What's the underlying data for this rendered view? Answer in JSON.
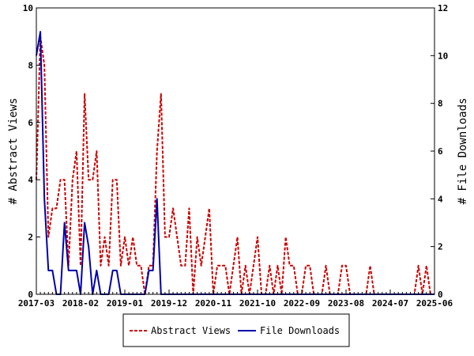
{
  "chart_data": {
    "type": "line",
    "ylabel_left": "# Abstract Views",
    "ylabel_right": "# File Downloads",
    "ylim_left": [
      0,
      10
    ],
    "ylim_right": [
      0,
      12
    ],
    "yticks_left": [
      "0",
      "2",
      "4",
      "6",
      "8",
      "10"
    ],
    "yticks_right": [
      "0",
      "2",
      "4",
      "6",
      "8",
      "10",
      "12"
    ],
    "xticks": [
      "2017-03",
      "2018-02",
      "2019-01",
      "2019-12",
      "2020-11",
      "2021-10",
      "2022-09",
      "2023-08",
      "2024-07",
      "2025-06"
    ],
    "x_start": "2017-03",
    "x_end": "2025-06",
    "legend_position": "bottom-center",
    "series": [
      {
        "name": "Abstract Views",
        "axis": "left",
        "color": "#cc0000",
        "style": "dashed",
        "values": [
          4,
          9,
          8,
          2,
          3,
          3,
          4,
          4,
          1,
          4,
          5,
          1,
          7,
          4,
          4,
          5,
          1,
          2,
          1,
          4,
          4,
          1,
          2,
          1,
          2,
          1,
          1,
          0,
          1,
          1,
          5,
          7,
          2,
          2,
          3,
          2,
          1,
          1,
          3,
          0,
          2,
          1,
          2,
          3,
          0,
          1,
          1,
          1,
          0,
          1,
          2,
          0,
          1,
          0,
          1,
          2,
          0,
          0,
          1,
          0,
          1,
          0,
          2,
          1,
          1,
          0,
          0,
          1,
          1,
          0,
          0,
          0,
          1,
          0,
          0,
          0,
          1,
          1,
          0,
          0,
          0,
          0,
          0,
          1,
          0,
          0,
          0,
          0,
          0,
          0,
          0,
          0,
          0,
          0,
          0,
          1,
          0,
          1,
          0,
          0
        ]
      },
      {
        "name": "File Downloads",
        "axis": "right",
        "color": "#0000aa",
        "style": "solid",
        "values": [
          10,
          11,
          4,
          1,
          1,
          0,
          0,
          3,
          1,
          1,
          1,
          0,
          3,
          2,
          0,
          1,
          0,
          0,
          0,
          1,
          1,
          0,
          0,
          0,
          0,
          0,
          0,
          0,
          1,
          1,
          4,
          0,
          0,
          0,
          0,
          0,
          0,
          0,
          0,
          0,
          0,
          0,
          0,
          0,
          0,
          0,
          0,
          0,
          0,
          0,
          0,
          0,
          0,
          0,
          0,
          0,
          0,
          0,
          0,
          0,
          0,
          0,
          0,
          0,
          0,
          0,
          0,
          0,
          0,
          0,
          0,
          0,
          0,
          0,
          0,
          0,
          0,
          0,
          0,
          0,
          0,
          0,
          0,
          0,
          0,
          0,
          0,
          0,
          0,
          0,
          0,
          0,
          0,
          0,
          0,
          0,
          0,
          0,
          0,
          0
        ]
      }
    ]
  }
}
